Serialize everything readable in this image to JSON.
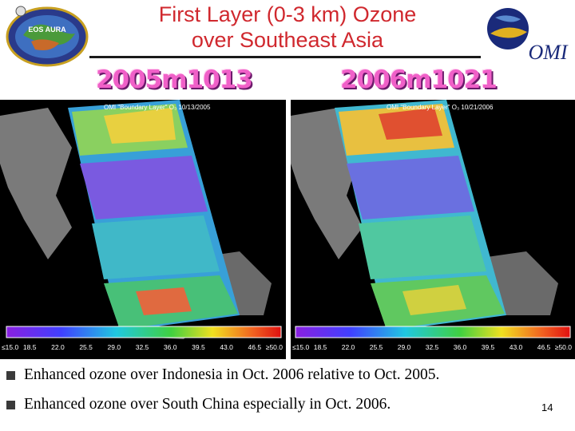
{
  "title": {
    "line1": "First Layer (0-3 km) Ozone",
    "line2": "over Southeast Asia"
  },
  "logos": {
    "left_text": "EOS AURA",
    "right_text": "OMI"
  },
  "date_labels": [
    "2005m1013",
    "2006m1021"
  ],
  "maps": [
    {
      "heading": "OMI \"Boundary Layer\" O₃ 10/13/2005",
      "colorbar_ticks": [
        "≤15.0",
        "18.5",
        "22.0",
        "25.5",
        "29.0",
        "32.5",
        "36.0",
        "39.5",
        "43.0",
        "46.5",
        "≥50.0"
      ]
    },
    {
      "heading": "OMI \"Boundary Layer\" O₃ 10/21/2006",
      "colorbar_ticks": [
        "≤15.0",
        "18.5",
        "22.0",
        "25.5",
        "29.0",
        "32.5",
        "36.0",
        "39.5",
        "43.0",
        "46.5",
        "≥50.0"
      ]
    }
  ],
  "bullets": [
    "Enhanced ozone over Indonesia in Oct. 2006 relative to Oct. 2005.",
    "Enhanced ozone over South China especially in Oct. 2006."
  ],
  "page_number": "14",
  "colors": {
    "title": "#d0282e",
    "date_label": "#f060c8"
  }
}
